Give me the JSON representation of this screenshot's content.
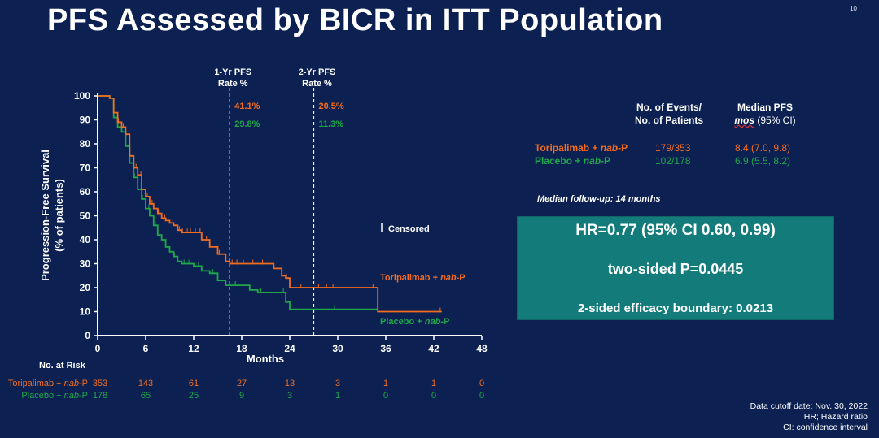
{
  "page": {
    "title": "PFS Assessed by BICR in ITT Population",
    "page_number": "10"
  },
  "chart_data": {
    "type": "line",
    "title": "PFS Assessed by BICR in ITT Population",
    "xlabel": "Months",
    "ylabel": "Progression-Free Survival (% of patients)",
    "ylabel_lines": [
      "Progression-Free Survival",
      "(% of patients)"
    ],
    "xlim": [
      0,
      48
    ],
    "ylim": [
      0,
      100
    ],
    "xticks": [
      0,
      6,
      12,
      18,
      24,
      30,
      36,
      42,
      48
    ],
    "yticks": [
      0,
      10,
      20,
      30,
      40,
      50,
      60,
      70,
      80,
      90,
      100
    ],
    "series": [
      {
        "name": "Toripalimab + nab-P",
        "label_plain": "Toripalimab + ",
        "label_italic": "nab",
        "label_suffix": "-P",
        "color": "#f26c1f",
        "x": [
          0,
          1.5,
          2,
          2.5,
          3,
          3.5,
          4,
          4.5,
          5,
          5.5,
          6,
          6.5,
          7,
          7.5,
          8,
          8.5,
          9,
          9.5,
          10,
          10.5,
          11,
          12,
          13,
          14,
          15,
          16,
          16.5,
          17,
          18,
          19,
          20,
          22,
          23,
          23.5,
          24,
          26,
          28,
          30,
          32,
          34,
          35,
          36,
          38,
          40,
          42,
          43
        ],
        "y": [
          100,
          99,
          93,
          89,
          87,
          84,
          75,
          70,
          67,
          61,
          58,
          55,
          53,
          51,
          49,
          48,
          47,
          46,
          44,
          43,
          43,
          43,
          40,
          37,
          34,
          31,
          30,
          30,
          30,
          30,
          30,
          28,
          25,
          24,
          20,
          20,
          20,
          20,
          20,
          20,
          10,
          10,
          10,
          10,
          10,
          10
        ],
        "censor_x": [
          2.6,
          3.2,
          4.8,
          5.4,
          6.2,
          6.8,
          7.6,
          8.4,
          9.4,
          10.2,
          10.6,
          11.2,
          11.6,
          12.2,
          12.8,
          13.6,
          15.2,
          16.8,
          17.4,
          18.2,
          19.4,
          20.6,
          21.4,
          23.6,
          25.4,
          27.6,
          28.6,
          29.4,
          34.4,
          42.8
        ]
      },
      {
        "name": "Placebo + nab-P",
        "label_plain": "Placebo + ",
        "label_italic": "nab",
        "label_suffix": "-P",
        "color": "#1fa84a",
        "x": [
          0,
          1.5,
          2,
          2.5,
          3,
          3.5,
          4,
          4.5,
          5,
          5.5,
          6,
          6.5,
          7,
          7.5,
          8,
          8.5,
          9,
          9.5,
          10,
          10.5,
          11,
          12,
          13,
          14,
          15,
          16,
          17,
          18,
          19,
          20,
          22,
          23,
          23.5,
          24,
          26,
          28,
          30,
          32,
          34,
          35
        ],
        "y": [
          100,
          99,
          91,
          87,
          85,
          79,
          72,
          66,
          61,
          57,
          53,
          50,
          46,
          42,
          40,
          37,
          35,
          33,
          31,
          30,
          30,
          29,
          27,
          26,
          23,
          21,
          21,
          21,
          19,
          18,
          18,
          18,
          14,
          11,
          11,
          11,
          11,
          11,
          11,
          11
        ],
        "censor_x": [
          3.4,
          4.6,
          5.6,
          6.4,
          7.2,
          8.8,
          9.6,
          10.8,
          11.4,
          12.6,
          14.4,
          17.2,
          20.4,
          23.2,
          27.4,
          29.6
        ]
      }
    ],
    "annotations": {
      "landmark_1yr": {
        "label_line1": "1-Yr PFS",
        "label_line2": "Rate %",
        "x": 16.5,
        "toripalimab": "41.1%",
        "placebo": "29.8%"
      },
      "landmark_2yr": {
        "label_line1": "2-Yr PFS",
        "label_line2": "Rate %",
        "x": 27,
        "toripalimab": "20.5%",
        "placebo": "11.3%"
      },
      "censored_label": "Censored"
    },
    "at_risk": {
      "header": "No. at Risk",
      "rows": [
        {
          "label_plain": "Toripalimab + ",
          "label_italic": "nab",
          "label_suffix": "-P",
          "color": "#f26c1f",
          "values": [
            "353",
            "143",
            "61",
            "27",
            "13",
            "3",
            "1",
            "1",
            "0"
          ]
        },
        {
          "label_plain": "Placebo + ",
          "label_italic": "nab",
          "label_suffix": "-P",
          "color": "#1fa84a",
          "values": [
            "178",
            "65",
            "25",
            "9",
            "3",
            "1",
            "0",
            "0",
            "0"
          ]
        }
      ]
    }
  },
  "summary": {
    "events_header_line1": "No. of Events/",
    "events_header_line2": "No. of Patients",
    "median_header_line1": "Median PFS",
    "median_header_mos": "mos",
    "median_header_ci": " (95% CI)",
    "rows": [
      {
        "label_plain": "Toripalimab + ",
        "label_italic": "nab",
        "label_suffix": "-P",
        "events": "179/353",
        "median": "8.4 (7.0, 9.8)",
        "color": "#f26c1f"
      },
      {
        "label_plain": "Placebo + ",
        "label_italic": "nab",
        "label_suffix": "-P",
        "events": "102/178",
        "median": "6.9 (5.5, 8.2)",
        "color": "#1fa84a"
      }
    ],
    "followup": "Median follow-up: 14 months"
  },
  "hr_box": {
    "hr": "HR=0.77 (95% CI 0.60, 0.99)",
    "p": "two-sided P=0.0445",
    "boundary": "2-sided efficacy boundary: 0.0213"
  },
  "footnotes": [
    "Data cutoff date: Nov. 30, 2022",
    "HR; Hazard ratio",
    "CI: confidence interval"
  ],
  "colors": {
    "background": "#0c2152",
    "toripalimab": "#f26c1f",
    "placebo": "#1fa84a",
    "hr_box": "#137c7a"
  }
}
